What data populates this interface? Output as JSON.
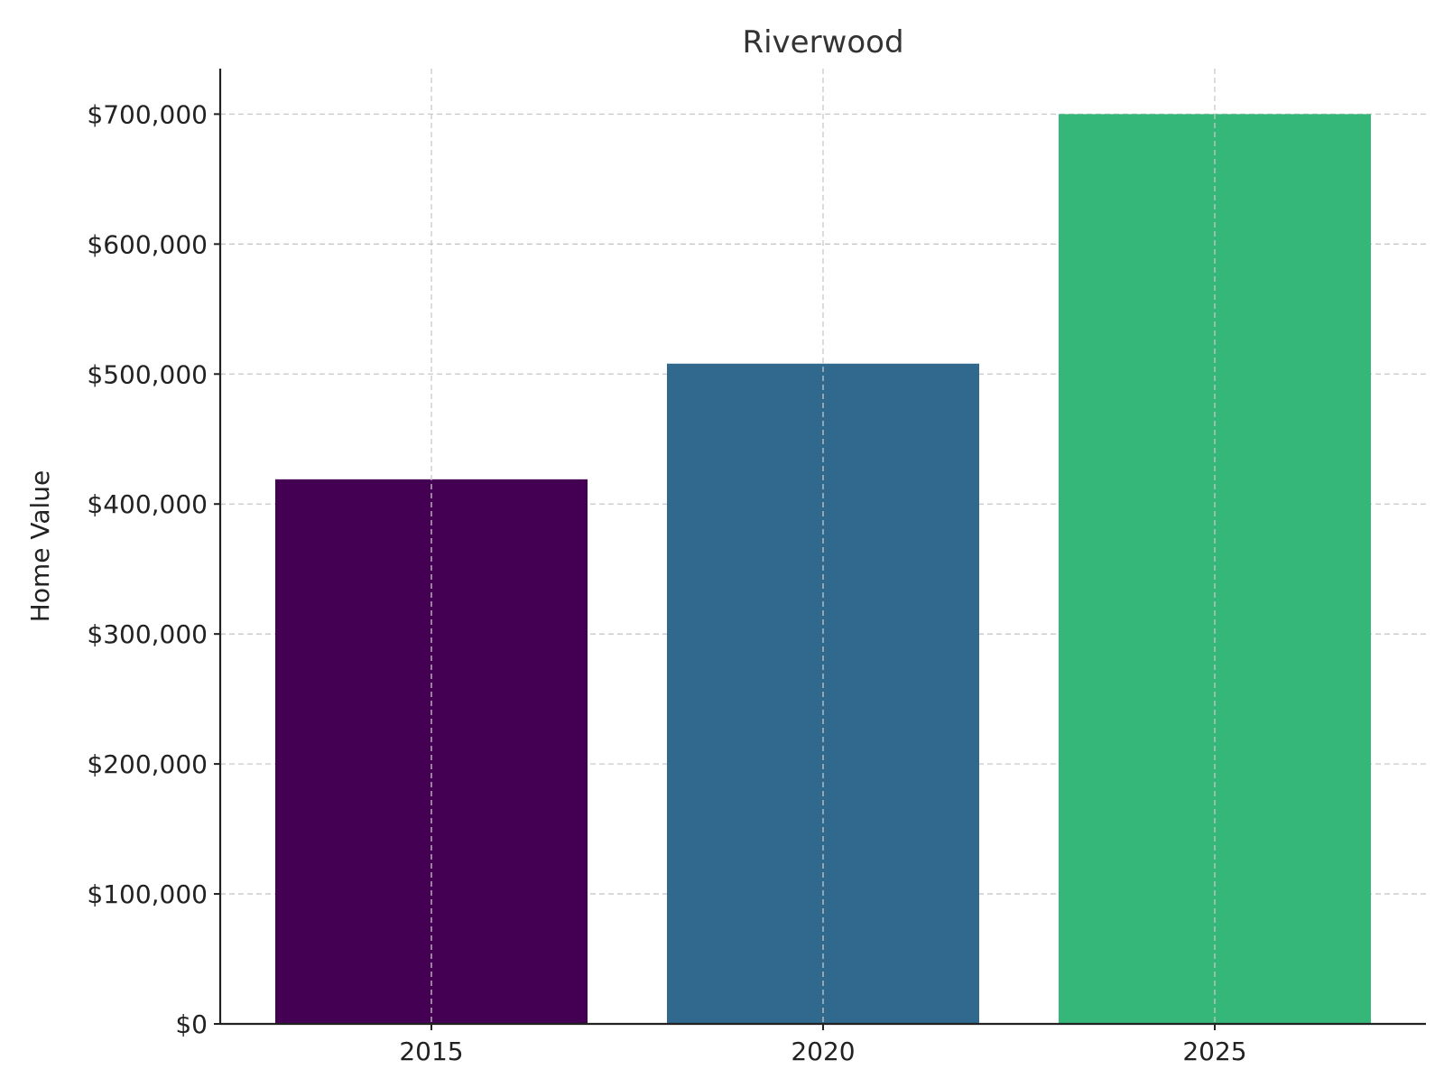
{
  "chart_data": {
    "type": "bar",
    "title": "Riverwood",
    "xlabel": "",
    "ylabel": "Home Value",
    "categories": [
      "2015",
      "2020",
      "2025"
    ],
    "values": [
      419000,
      508000,
      700000
    ],
    "bar_colors": [
      "#440154",
      "#31688e",
      "#35b779"
    ],
    "ylim": [
      0,
      700000
    ],
    "yticks": [
      0,
      100000,
      200000,
      300000,
      400000,
      500000,
      600000,
      700000
    ],
    "ytick_labels": [
      "$0",
      "$100,000",
      "$200,000",
      "$300,000",
      "$400,000",
      "$500,000",
      "$600,000",
      "$700,000"
    ],
    "grid": true,
    "legend": "none"
  }
}
